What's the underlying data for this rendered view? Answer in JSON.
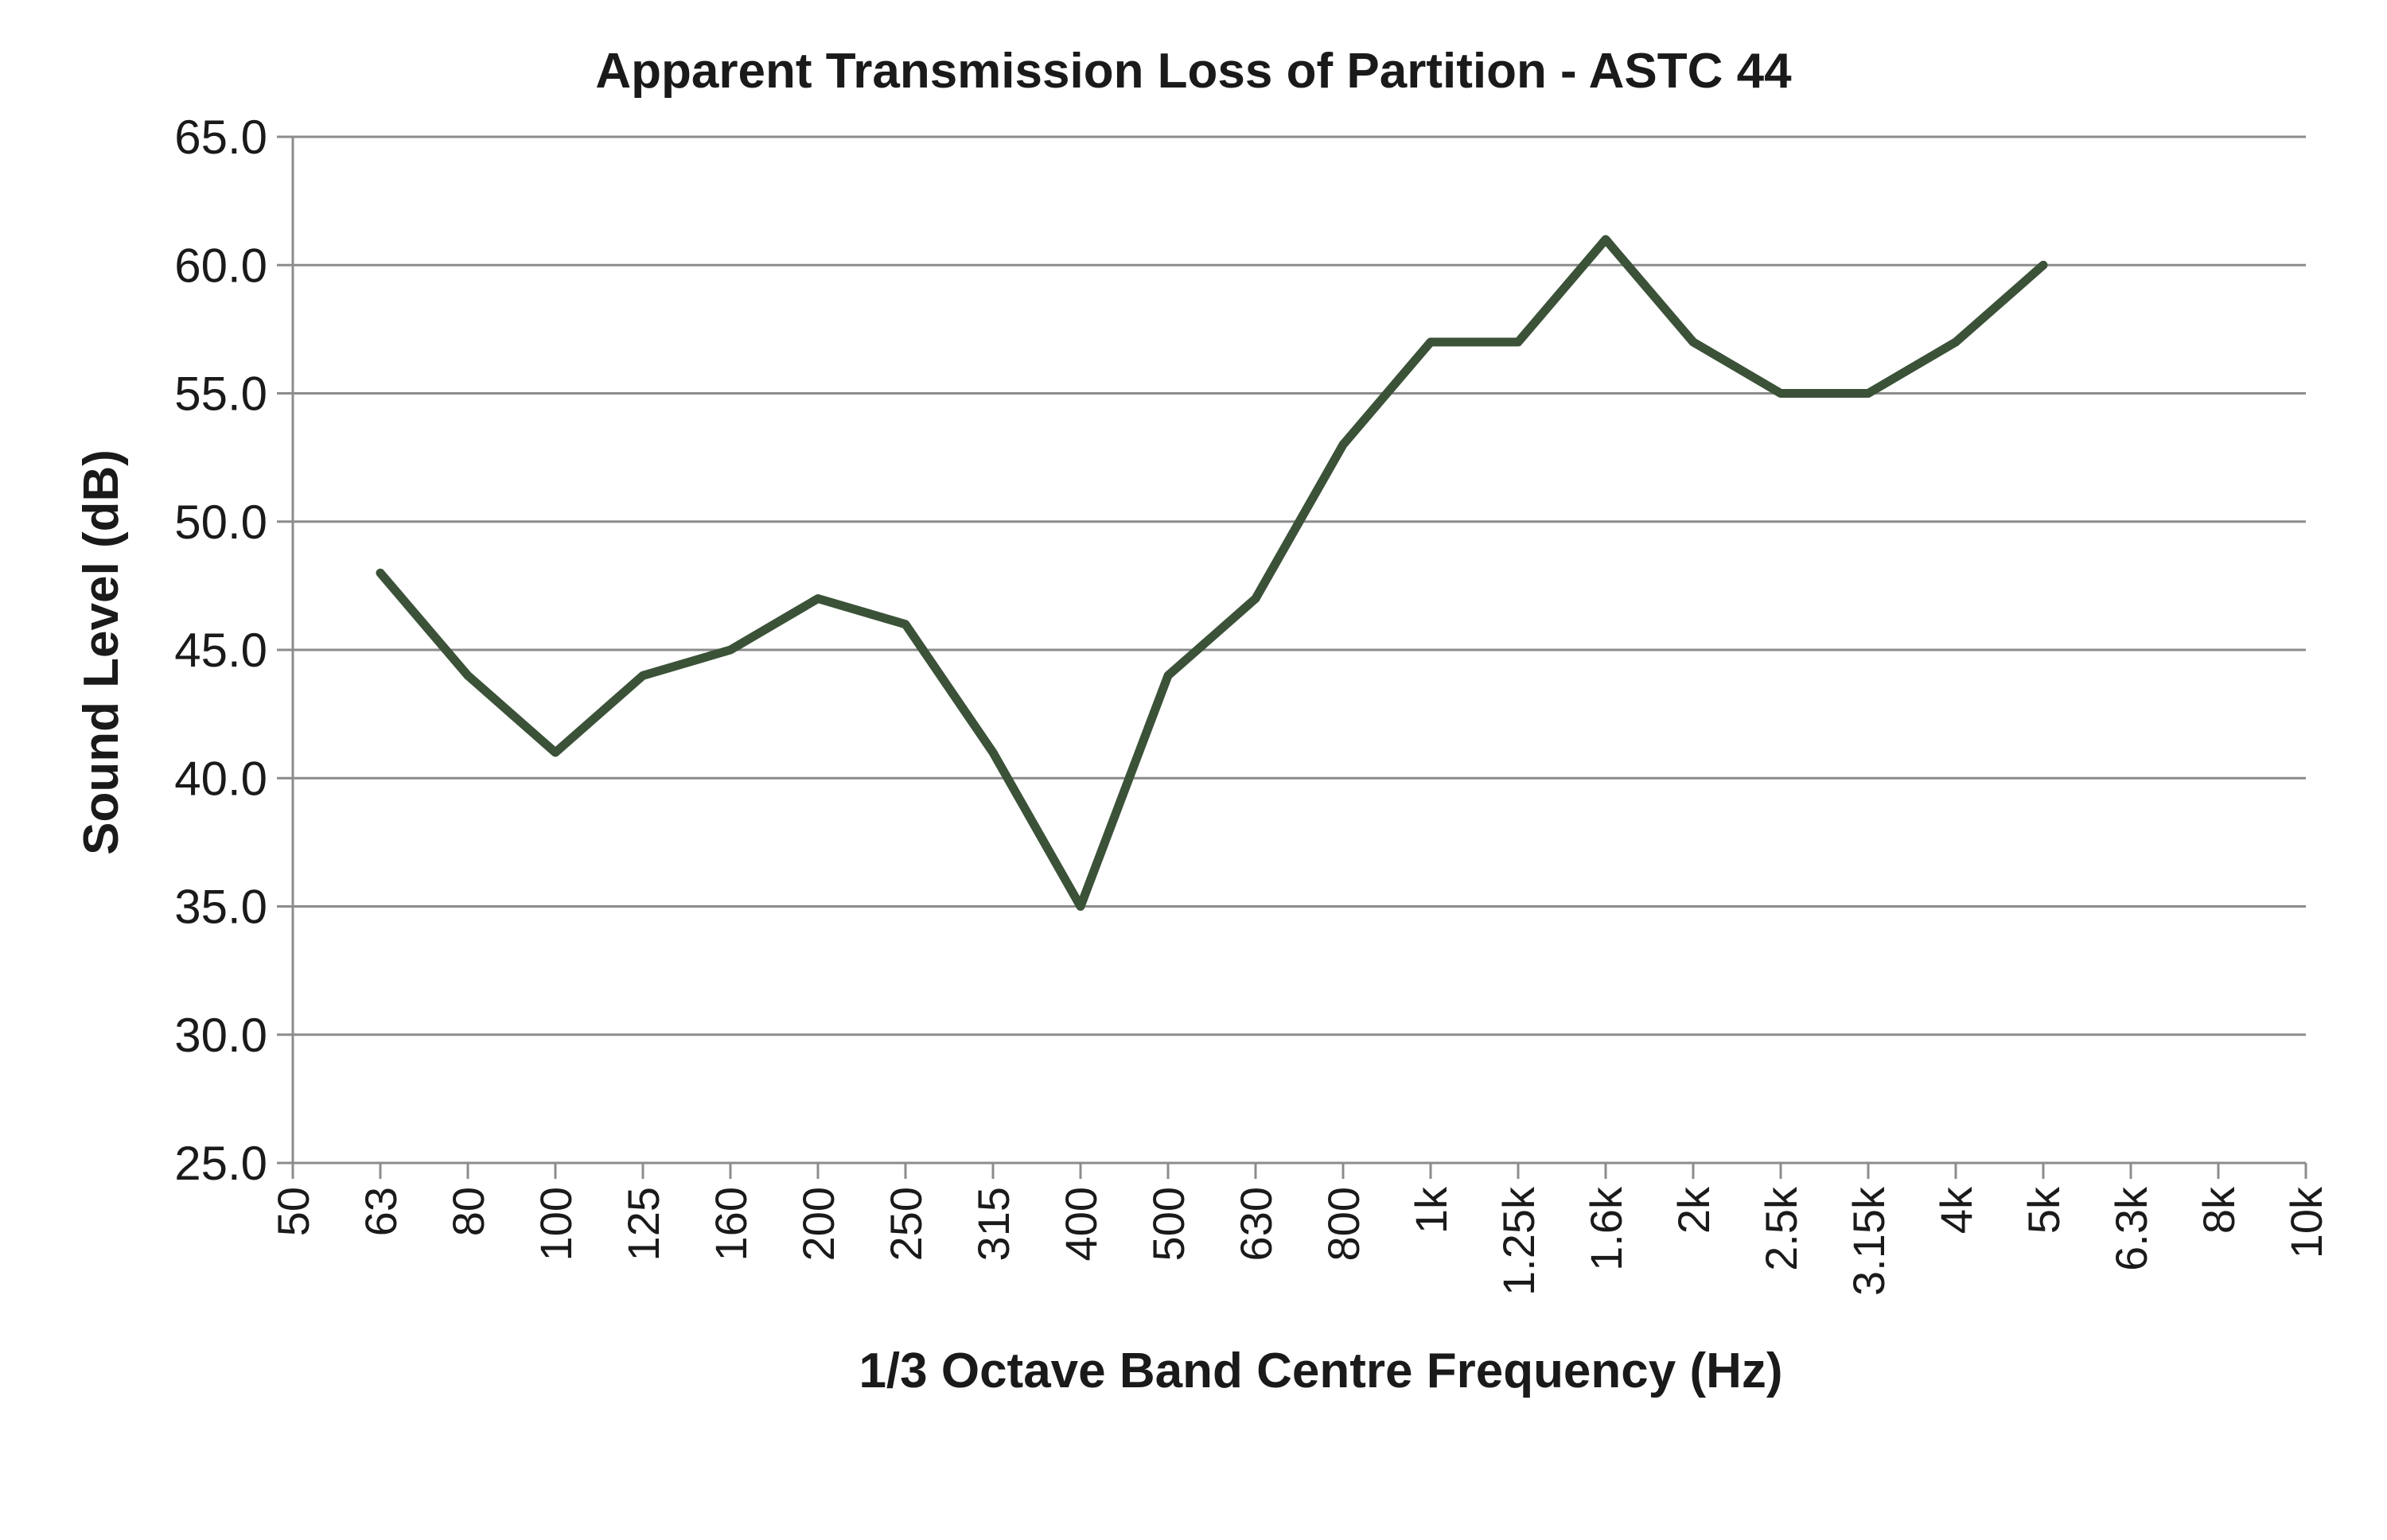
{
  "chart_data": {
    "type": "line",
    "title": "Apparent Transmission Loss of Partition - ASTC 44",
    "xlabel": "1/3 Octave Band Centre Frequency (Hz)",
    "ylabel": "Sound Level (dB)",
    "categories": [
      "50",
      "63",
      "80",
      "100",
      "125",
      "160",
      "200",
      "250",
      "315",
      "400",
      "500",
      "630",
      "800",
      "1k",
      "1.25k",
      "1.6k",
      "2k",
      "2.5k",
      "3.15k",
      "4k",
      "5k",
      "6.3k",
      "8k",
      "10k"
    ],
    "yticks": [
      "25.0",
      "30.0",
      "35.0",
      "40.0",
      "45.0",
      "50.0",
      "55.0",
      "60.0",
      "65.0"
    ],
    "ylim": [
      25,
      65
    ],
    "grid": true,
    "legend": "none",
    "series": [
      {
        "color": "#3b5238",
        "values": [
          null,
          48,
          44,
          41,
          44,
          45,
          47,
          46,
          41,
          35,
          44,
          47,
          53,
          57,
          57,
          61,
          57,
          55,
          55,
          57,
          60,
          null,
          null,
          null
        ]
      }
    ]
  }
}
